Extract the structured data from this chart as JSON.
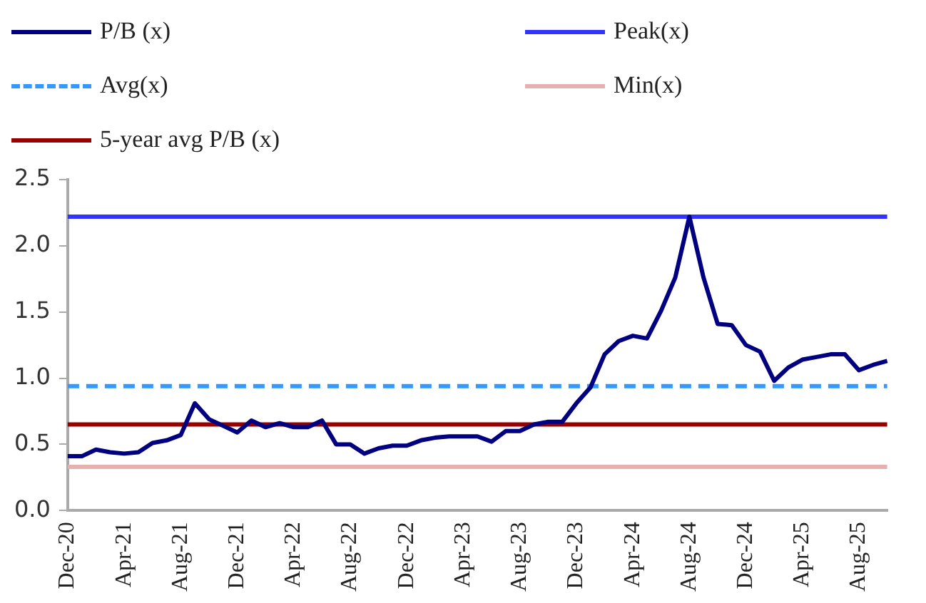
{
  "chart_data": {
    "type": "line",
    "categories": [
      "Dec-20",
      null,
      null,
      null,
      "Apr-21",
      null,
      null,
      null,
      "Aug-21",
      null,
      null,
      null,
      "Dec-21",
      null,
      null,
      null,
      "Apr-22",
      null,
      null,
      null,
      "Aug-22",
      null,
      null,
      null,
      "Dec-22",
      null,
      null,
      null,
      "Apr-23",
      null,
      null,
      null,
      "Aug-23",
      null,
      null,
      null,
      "Dec-23",
      null,
      null,
      null,
      "Apr-24",
      null,
      null,
      null,
      "Aug-24",
      null,
      null,
      null,
      "Dec-24",
      null,
      null,
      null,
      "Apr-25",
      null,
      null,
      null,
      "Aug-25",
      null,
      null
    ],
    "series": [
      {
        "name": "P/B (x)",
        "color": "#000080",
        "values": [
          0.41,
          0.41,
          0.46,
          0.44,
          0.43,
          0.44,
          0.51,
          0.53,
          0.57,
          0.81,
          0.69,
          0.64,
          0.59,
          0.68,
          0.63,
          0.66,
          0.63,
          0.63,
          0.68,
          0.5,
          0.5,
          0.43,
          0.47,
          0.49,
          0.49,
          0.53,
          0.55,
          0.56,
          0.56,
          0.56,
          0.52,
          0.6,
          0.6,
          0.65,
          0.67,
          0.67,
          0.81,
          0.93,
          1.18,
          1.28,
          1.32,
          1.3,
          1.51,
          1.76,
          2.22,
          1.76,
          1.41,
          1.4,
          1.25,
          1.2,
          0.98,
          1.08,
          1.14,
          1.16,
          1.18,
          1.18,
          1.06,
          1.1,
          1.13
        ]
      }
    ],
    "ref_lines": [
      {
        "axis": "y",
        "value": 2.22,
        "label": "Peak(x)",
        "color": "#3333ff",
        "line_style": "solid"
      },
      {
        "axis": "y",
        "value": 0.94,
        "label": "Avg(x)",
        "color": "#3399ff",
        "line_style": "dashed"
      },
      {
        "axis": "y",
        "value": 0.33,
        "label": "Min(x)",
        "color": "#e6b0b0",
        "line_style": "solid"
      },
      {
        "axis": "y",
        "value": 0.65,
        "label": "5-year avg P/B (x)",
        "color": "#990000",
        "line_style": "solid"
      }
    ],
    "ylim": [
      0,
      2.5
    ],
    "yticks": [
      {
        "value": 0,
        "label": "0.0"
      },
      {
        "value": 0.5,
        "label": "0.5"
      },
      {
        "value": 1,
        "label": "1.0"
      },
      {
        "value": 1.5,
        "label": "1.5"
      },
      {
        "value": 2,
        "label": "2.0"
      },
      {
        "value": 2.5,
        "label": "2.5"
      }
    ],
    "grid": false,
    "legend": "top",
    "marker": "none",
    "line_style": "solid"
  }
}
